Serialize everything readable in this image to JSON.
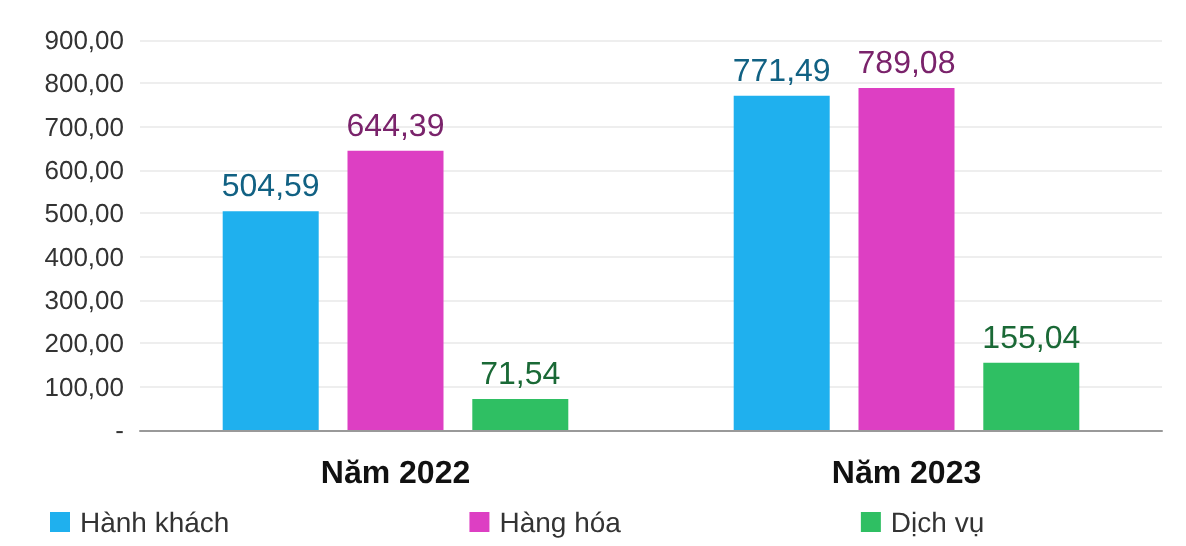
{
  "chart_data": {
    "type": "bar",
    "categories": [
      "Năm 2022",
      "Năm 2023"
    ],
    "series": [
      {
        "name": "Hành khách",
        "color": "#1fb0ee",
        "values": [
          504.59,
          771.49
        ],
        "value_labels": [
          "504,59",
          "771,49"
        ]
      },
      {
        "name": "Hàng hóa",
        "color": "#dd3fc3",
        "values": [
          644.39,
          789.08
        ],
        "value_labels": [
          "644,39",
          "789,08"
        ]
      },
      {
        "name": "Dịch vụ",
        "color": "#2fbf63",
        "values": [
          71.54,
          155.04
        ],
        "value_labels": [
          "71,54",
          "155,04"
        ]
      }
    ],
    "ylim": [
      0,
      900
    ],
    "yticks": [
      {
        "value": 0,
        "label": "-"
      },
      {
        "value": 100,
        "label": "100,00"
      },
      {
        "value": 200,
        "label": "200,00"
      },
      {
        "value": 300,
        "label": "300,00"
      },
      {
        "value": 400,
        "label": "400,00"
      },
      {
        "value": 500,
        "label": "500,00"
      },
      {
        "value": 600,
        "label": "600,00"
      },
      {
        "value": 700,
        "label": "700,00"
      },
      {
        "value": 800,
        "label": "800,00"
      },
      {
        "value": 900,
        "label": "900,00"
      }
    ],
    "grid": "y",
    "legend": "bottom"
  }
}
